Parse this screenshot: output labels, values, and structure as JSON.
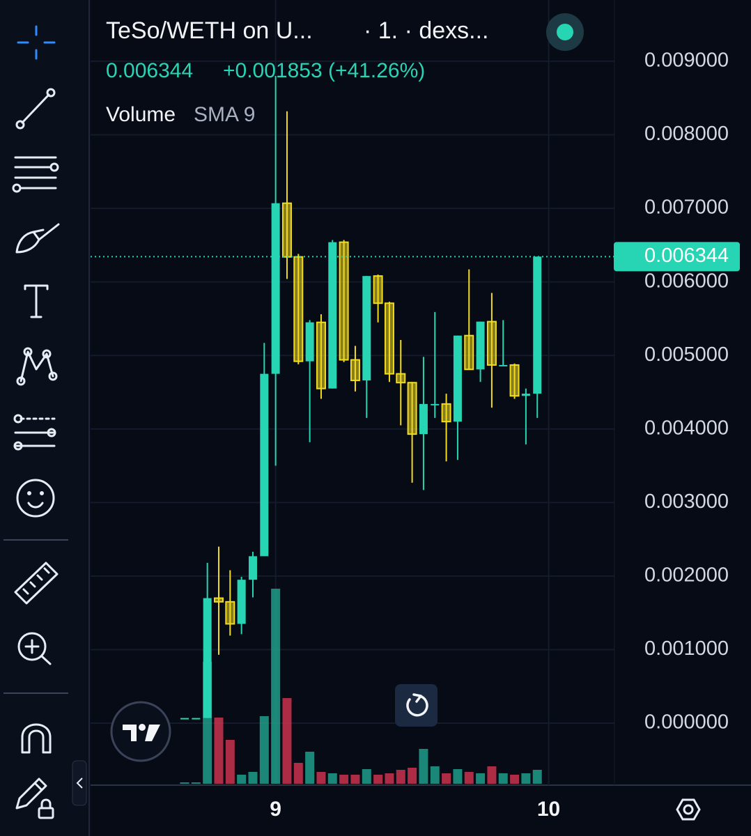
{
  "chart_data": {
    "type": "candlestick",
    "title": "TeSo/WETH on U...",
    "subtitle": "· 1. · dexs...",
    "price": "0.006344",
    "change": "+0.001853 (+41.26%)",
    "volume_label": "Volume",
    "volume_indicator": "SMA 9",
    "categories": [
      null,
      null,
      null,
      null,
      null,
      null,
      null,
      null,
      "9",
      null,
      null,
      null,
      null,
      null,
      null,
      null,
      null,
      null,
      null,
      null,
      null,
      null,
      null,
      null,
      null,
      null,
      null,
      null,
      null,
      null,
      null,
      null,
      "10"
    ],
    "open": [
      7e-05,
      7e-05,
      7e-05,
      0.0017,
      0.00165,
      0.00135,
      0.00195,
      0.00227,
      0.00475,
      0.00707,
      0.00634,
      0.00492,
      0.00545,
      0.00455,
      0.00654,
      0.00494,
      0.00466,
      0.00608,
      0.00571,
      0.00475,
      0.00463,
      0.00393,
      0.00434,
      0.00434,
      0.0041,
      0.00527,
      0.00481,
      0.00546,
      0.00487,
      0.00487,
      0.00445,
      0.00448,
      null
    ],
    "high": [
      7e-05,
      7e-05,
      0.00218,
      0.0024,
      0.00208,
      0.00199,
      0.00233,
      0.00517,
      0.0088,
      0.00832,
      0.00638,
      0.00548,
      0.00556,
      0.00657,
      0.00657,
      0.00513,
      0.00608,
      0.0061,
      0.00573,
      0.00521,
      0.00464,
      0.00498,
      0.00559,
      0.00448,
      0.00527,
      0.00617,
      0.00546,
      0.00585,
      0.00548,
      0.00489,
      0.00455,
      0.006344,
      null
    ],
    "low": [
      7e-05,
      7e-05,
      7e-05,
      0.00093,
      0.00119,
      0.00121,
      0.00171,
      0.00227,
      0.0035,
      0.00604,
      0.00488,
      0.00382,
      0.00441,
      0.00455,
      0.00491,
      0.00451,
      0.00415,
      0.00545,
      0.00464,
      0.00405,
      0.00327,
      0.00317,
      0.00415,
      0.00356,
      0.00358,
      0.00481,
      0.00464,
      0.00429,
      0.00486,
      0.00441,
      0.00379,
      0.00415,
      null
    ],
    "close": [
      7e-05,
      7e-05,
      0.0017,
      0.00165,
      0.00135,
      0.00195,
      0.00227,
      0.00475,
      0.00707,
      0.00634,
      0.00492,
      0.00545,
      0.00455,
      0.00654,
      0.00494,
      0.00466,
      0.00608,
      0.00571,
      0.00475,
      0.00463,
      0.00393,
      0.00434,
      0.00434,
      0.0041,
      0.00527,
      0.00481,
      0.00546,
      0.00487,
      0.00487,
      0.00445,
      0.00448,
      0.006344,
      null
    ],
    "volume": [
      2,
      2,
      175,
      95,
      63,
      13,
      17,
      97,
      280,
      123,
      30,
      46,
      17,
      15,
      13,
      13,
      21,
      13,
      15,
      20,
      23,
      50,
      25,
      15,
      21,
      17,
      15,
      25,
      15,
      13,
      15,
      20,
      null
    ],
    "up_color": "#27d4b3",
    "down_color": "#f2dc1f",
    "volume_up_color": "#1f9e8a",
    "volume_down_color": "#c9334f",
    "ylim": [
      -0.000824,
      0.009833
    ],
    "yticks": [
      {
        "value": 0,
        "label": "0.000000"
      },
      {
        "value": 0.001,
        "label": "0.001000"
      },
      {
        "value": 0.002,
        "label": "0.002000"
      },
      {
        "value": 0.003,
        "label": "0.003000"
      },
      {
        "value": 0.004,
        "label": "0.004000"
      },
      {
        "value": 0.005,
        "label": "0.005000"
      },
      {
        "value": 0.006,
        "label": "0.006000"
      },
      {
        "value": 0.007,
        "label": "0.007000"
      },
      {
        "value": 0.008,
        "label": "0.008000"
      },
      {
        "value": 0.009,
        "label": "0.009000"
      }
    ],
    "last_price": {
      "value": 0.006344,
      "label": "0.006344"
    },
    "grid": true
  }
}
